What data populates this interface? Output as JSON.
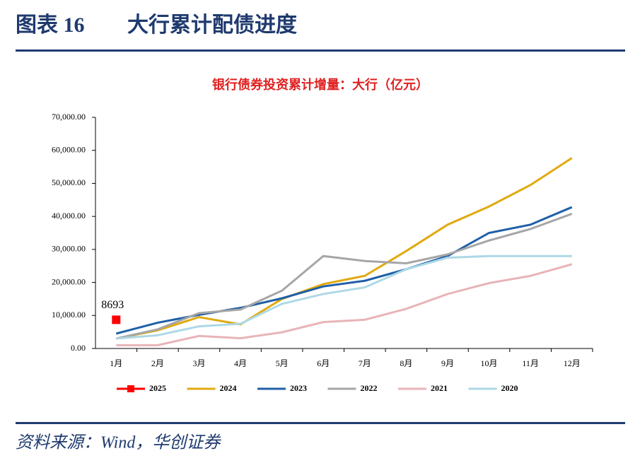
{
  "header": {
    "label": "图表 16",
    "title": "大行累计配债进度"
  },
  "source": "资料来源：Wind，华创证券",
  "chart_data": {
    "type": "line",
    "title": "银行债券投资累计增量：大行（亿元）",
    "categories": [
      "1月",
      "2月",
      "3月",
      "4月",
      "5月",
      "6月",
      "7月",
      "8月",
      "9月",
      "10月",
      "11月",
      "12月"
    ],
    "series": [
      {
        "name": "2025",
        "color": "#ff0000",
        "marker": "square",
        "values": [
          8693,
          null,
          null,
          null,
          null,
          null,
          null,
          null,
          null,
          null,
          null,
          null
        ]
      },
      {
        "name": "2024",
        "color": "#e0aa10",
        "values": [
          3000,
          5500,
          9500,
          7300,
          15000,
          19500,
          22000,
          29500,
          37500,
          43000,
          49500,
          57700
        ]
      },
      {
        "name": "2023",
        "color": "#1f5fa8",
        "values": [
          4500,
          7800,
          10200,
          12300,
          15200,
          18800,
          20500,
          24000,
          28000,
          35000,
          37500,
          42800
        ]
      },
      {
        "name": "2022",
        "color": "#a6a6a6",
        "values": [
          3000,
          5800,
          10700,
          11800,
          17500,
          28000,
          26500,
          25800,
          28500,
          32700,
          36200,
          40800
        ]
      },
      {
        "name": "2021",
        "color": "#e8b4b8",
        "values": [
          1000,
          1000,
          3800,
          3100,
          4900,
          8000,
          8700,
          12000,
          16500,
          19800,
          22000,
          25500
        ]
      },
      {
        "name": "2020",
        "color": "#add8e6",
        "values": [
          3000,
          4000,
          6700,
          7500,
          13500,
          16500,
          18500,
          24000,
          27500,
          28000,
          28000,
          28000
        ]
      }
    ],
    "ylim": [
      0,
      70000
    ],
    "yticks": [
      {
        "value": 0,
        "label": "0.00"
      },
      {
        "value": 10000,
        "label": "10,000.00"
      },
      {
        "value": 20000,
        "label": "20,000.00"
      },
      {
        "value": 30000,
        "label": "30,000.00"
      },
      {
        "value": 40000,
        "label": "40,000.00"
      },
      {
        "value": 50000,
        "label": "50,000.00"
      },
      {
        "value": 60000,
        "label": "60,000.00"
      },
      {
        "value": 70000,
        "label": "70,000.00"
      }
    ],
    "grid": false
  }
}
